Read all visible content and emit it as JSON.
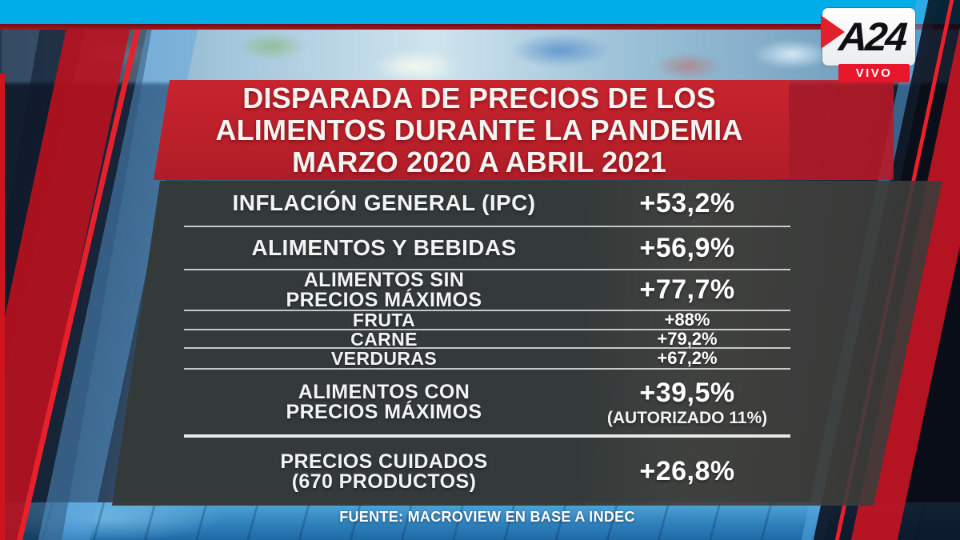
{
  "broadcast": {
    "logo": "A24",
    "live_badge": "VIVO"
  },
  "title": {
    "line1": "DISPARADA DE PRECIOS DE LOS",
    "line2": "ALIMENTOS DURANTE LA PANDEMIA",
    "line3": "MARZO 2020 A ABRIL 2021"
  },
  "table": {
    "rows": [
      {
        "label": "INFLACIÓN GENERAL (IPC)",
        "value": "+53,2%"
      },
      {
        "label": "ALIMENTOS Y BEBIDAS",
        "value": "+56,9%"
      },
      {
        "label1": "ALIMENTOS SIN",
        "label2": "PRECIOS MÁXIMOS",
        "value": "+77,7%"
      },
      {
        "label": "FRUTA",
        "value": "+88%"
      },
      {
        "label": "CARNE",
        "value": "+79,2%"
      },
      {
        "label": "VERDURAS",
        "value": "+67,2%"
      },
      {
        "label1": "ALIMENTOS CON",
        "label2": "PRECIOS MÁXIMOS",
        "value": "+39,5%",
        "note": "(AUTORIZADO 11%)"
      },
      {
        "label1": "PRECIOS CUIDADOS",
        "label2": "(670 PRODUCTOS)",
        "value": "+26,8%"
      }
    ]
  },
  "source": "FUENTE: MACROVIEW EN BASE A INDEC",
  "colors": {
    "cyan_bar": "#00ADE9",
    "banner_red": "#C2212B",
    "panel_gray": "#383E3D",
    "live_red": "#E8162B",
    "separator_white": "#DDE1E0"
  },
  "chart_data": {
    "type": "table",
    "title": "DISPARADA DE PRECIOS DE LOS ALIMENTOS DURANTE LA PANDEMIA MARZO 2020 A ABRIL 2021",
    "categories": [
      "INFLACIÓN GENERAL (IPC)",
      "ALIMENTOS Y BEBIDAS",
      "ALIMENTOS SIN PRECIOS MÁXIMOS",
      "FRUTA",
      "CARNE",
      "VERDURAS",
      "ALIMENTOS CON PRECIOS MÁXIMOS",
      "PRECIOS CUIDADOS (670 PRODUCTOS)"
    ],
    "values": [
      53.2,
      56.9,
      77.7,
      88,
      79.2,
      67.2,
      39.5,
      26.8
    ],
    "value_labels": [
      "+53,2%",
      "+56,9%",
      "+77,7%",
      "+88%",
      "+79,2%",
      "+67,2%",
      "+39,5%",
      "+26,8%"
    ],
    "annotations": [
      {
        "category": "ALIMENTOS CON PRECIOS MÁXIMOS",
        "text": "(AUTORIZADO 11%)"
      }
    ],
    "unit": "percent change",
    "source": "FUENTE: MACROVIEW EN BASE A INDEC"
  }
}
